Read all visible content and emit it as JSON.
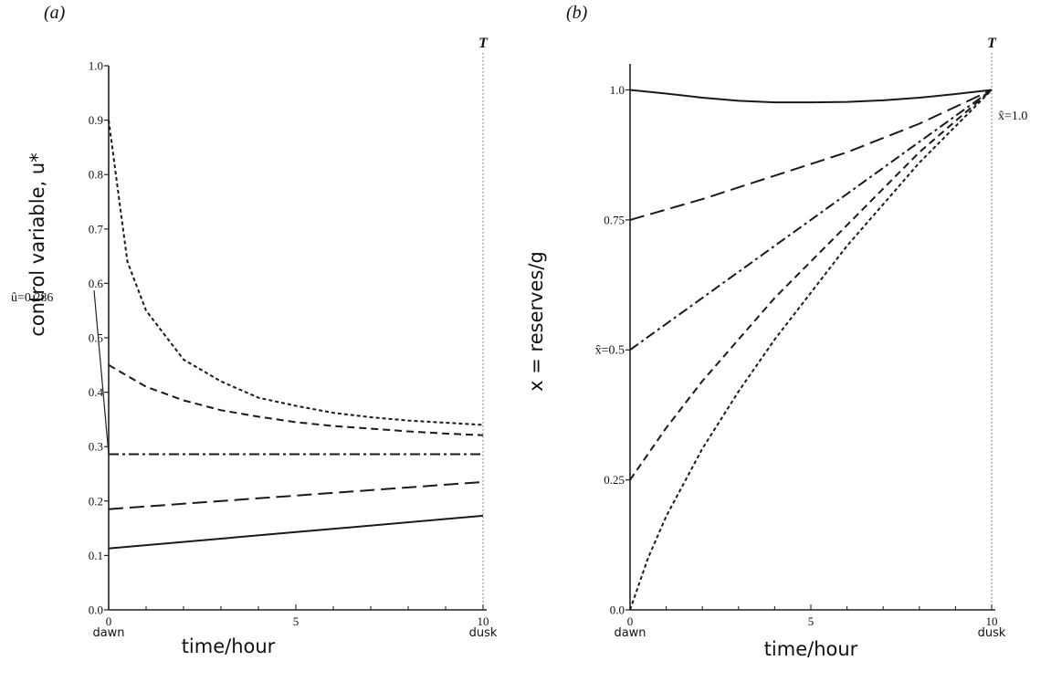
{
  "chart_data": [
    {
      "type": "line",
      "panel_label": "(a)",
      "xlabel": "time/hour",
      "ylabel": "control variable, u*",
      "xlim": [
        0,
        10
      ],
      "ylim": [
        0,
        1.0
      ],
      "xticks": [
        0,
        5,
        10
      ],
      "xtick_labels": [
        "0",
        "5",
        "10"
      ],
      "yticks": [
        0.0,
        0.1,
        0.2,
        0.3,
        0.4,
        0.5,
        0.6,
        0.7,
        0.8,
        0.9,
        1.0
      ],
      "ytick_labels": [
        "0.0",
        "0.1",
        "0.2",
        "0.3",
        "0.4",
        "0.5",
        "0.6",
        "0.7",
        "0.8",
        "0.9",
        "1.0"
      ],
      "start_label": "dawn",
      "end_label": "dusk",
      "terminal_label": "T",
      "annotation": "û=0.286",
      "grid": false,
      "series": [
        {
          "style": "short-dash",
          "x": [
            0,
            0.5,
            1,
            2,
            3,
            4,
            5,
            6,
            7,
            8,
            9,
            10
          ],
          "y": [
            0.9,
            0.64,
            0.55,
            0.46,
            0.42,
            0.39,
            0.375,
            0.362,
            0.354,
            0.348,
            0.344,
            0.34
          ]
        },
        {
          "style": "dashed",
          "x": [
            0,
            1,
            2,
            3,
            4,
            5,
            6,
            7,
            8,
            9,
            10
          ],
          "y": [
            0.45,
            0.41,
            0.385,
            0.367,
            0.355,
            0.345,
            0.338,
            0.333,
            0.328,
            0.324,
            0.321
          ]
        },
        {
          "style": "dash-dot",
          "x": [
            0,
            10
          ],
          "y": [
            0.286,
            0.286
          ]
        },
        {
          "style": "long-dash",
          "x": [
            0,
            5,
            10
          ],
          "y": [
            0.185,
            0.21,
            0.235
          ]
        },
        {
          "style": "solid",
          "x": [
            0,
            5,
            10
          ],
          "y": [
            0.113,
            0.143,
            0.173
          ]
        }
      ]
    },
    {
      "type": "line",
      "panel_label": "(b)",
      "xlabel": "time/hour",
      "ylabel": "x = reserves/g",
      "xlim": [
        0,
        10
      ],
      "ylim": [
        0,
        1.05
      ],
      "xticks": [
        0,
        5,
        10
      ],
      "xtick_labels": [
        "0",
        "5",
        "10"
      ],
      "yticks": [
        0.0,
        0.25,
        0.5,
        0.75,
        1.0
      ],
      "ytick_labels": [
        "0.0",
        "0.25",
        "x̂=0.5",
        "0.75",
        "1.0"
      ],
      "start_label": "dawn",
      "end_label": "dusk",
      "terminal_label": "T",
      "annotation": "x̂=1.0",
      "grid": false,
      "series": [
        {
          "style": "solid",
          "x": [
            0,
            1,
            2,
            3,
            4,
            5,
            6,
            7,
            8,
            9,
            10
          ],
          "y": [
            1.0,
            0.993,
            0.985,
            0.979,
            0.976,
            0.976,
            0.977,
            0.98,
            0.985,
            0.992,
            1.0
          ]
        },
        {
          "style": "long-dash",
          "x": [
            0,
            2,
            4,
            6,
            8,
            10
          ],
          "y": [
            0.75,
            0.79,
            0.835,
            0.88,
            0.935,
            1.0
          ]
        },
        {
          "style": "dash-dot",
          "x": [
            0,
            2,
            4,
            6,
            8,
            10
          ],
          "y": [
            0.5,
            0.6,
            0.7,
            0.8,
            0.9,
            1.0
          ]
        },
        {
          "style": "dashed",
          "x": [
            0,
            1,
            2,
            3,
            4,
            5,
            6,
            7,
            8,
            9,
            10
          ],
          "y": [
            0.25,
            0.35,
            0.44,
            0.52,
            0.6,
            0.67,
            0.74,
            0.81,
            0.88,
            0.94,
            1.0
          ]
        },
        {
          "style": "short-dash",
          "x": [
            0,
            0.5,
            1,
            2,
            3,
            4,
            5,
            6,
            7,
            8,
            9,
            10
          ],
          "y": [
            0.0,
            0.1,
            0.18,
            0.31,
            0.42,
            0.52,
            0.61,
            0.7,
            0.78,
            0.86,
            0.93,
            1.0
          ]
        }
      ]
    }
  ]
}
